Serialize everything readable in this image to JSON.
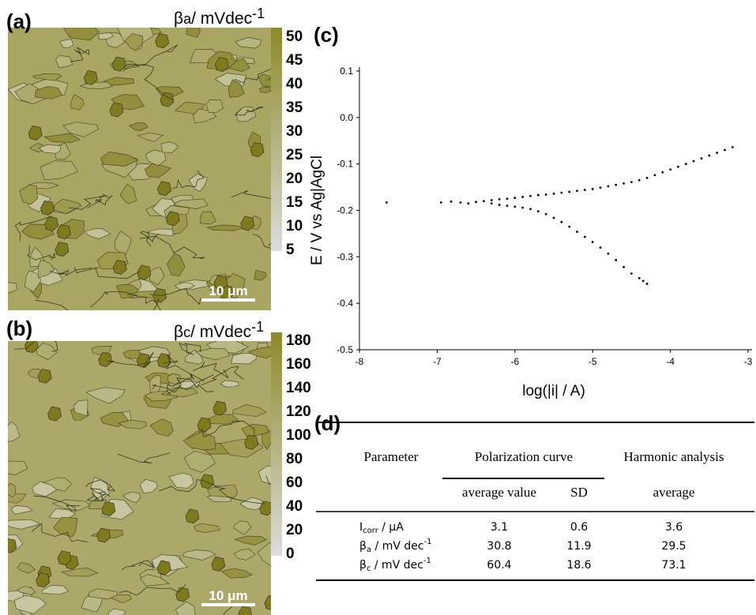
{
  "panels": {
    "a": {
      "label": "(a)",
      "title": {
        "main": "β",
        "sub": "a",
        "unit": "/ mVdec",
        "sup": "-1"
      },
      "colorbar": {
        "lim": [
          5,
          50
        ],
        "ticks": [
          50,
          45,
          40,
          35,
          30,
          25,
          20,
          15,
          10,
          5
        ]
      },
      "scale_bar": "10 μm"
    },
    "b": {
      "label": "(b)",
      "title": {
        "main": "β",
        "sub": "c",
        "unit": "/ mVdec",
        "sup": "-1"
      },
      "colorbar": {
        "lim": [
          0,
          180
        ],
        "ticks": [
          180,
          160,
          140,
          120,
          100,
          80,
          60,
          40,
          20,
          0
        ]
      },
      "scale_bar": "10 μm"
    },
    "c": {
      "label": "(c)"
    },
    "d": {
      "label": "(d)"
    }
  },
  "chart_data": {
    "type": "scatter",
    "color": "#000000",
    "x_label": "log(|i| / A)",
    "y_label": "E / V vs Ag|AgCl",
    "xlim": [
      -8,
      -3
    ],
    "xticks": [
      -8,
      -7,
      -6,
      -5,
      -4,
      -3
    ],
    "ylim": [
      -0.5,
      0.1
    ],
    "yticks": [
      0.1,
      {
        "value": 0,
        "label": "0.0"
      },
      -0.1,
      -0.2,
      -0.3,
      -0.4,
      -0.5
    ],
    "x": [
      -7.65,
      -6.95,
      -6.82,
      -6.7,
      -6.6,
      -6.5,
      -6.4,
      -6.3,
      -6.2,
      -6.1,
      -6.0,
      -5.9,
      -5.8,
      -5.7,
      -5.6,
      -5.5,
      -5.4,
      -5.3,
      -5.2,
      -5.1,
      -5.0,
      -4.9,
      -4.8,
      -4.7,
      -4.6,
      -4.5,
      -4.4,
      -4.3,
      -4.2,
      -4.1,
      -4.0,
      -3.9,
      -3.8,
      -3.7,
      -3.6,
      -3.5,
      -3.4,
      -3.3,
      -3.2,
      -6.3,
      -6.2,
      -6.1,
      -6.0,
      -5.9,
      -5.8,
      -5.7,
      -5.6,
      -5.5,
      -5.4,
      -5.3,
      -5.2,
      -5.1,
      -5.0,
      -4.9,
      -4.8,
      -4.7,
      -4.6,
      -4.5,
      -4.4,
      -4.35,
      -4.3
    ],
    "values": [
      -0.183,
      -0.183,
      -0.181,
      -0.183,
      -0.185,
      -0.182,
      -0.18,
      -0.178,
      -0.176,
      -0.175,
      -0.173,
      -0.171,
      -0.169,
      -0.167,
      -0.166,
      -0.164,
      -0.162,
      -0.16,
      -0.158,
      -0.156,
      -0.154,
      -0.151,
      -0.148,
      -0.145,
      -0.142,
      -0.139,
      -0.135,
      -0.13,
      -0.124,
      -0.118,
      -0.112,
      -0.106,
      -0.1,
      -0.094,
      -0.088,
      -0.082,
      -0.076,
      -0.07,
      -0.064,
      -0.185,
      -0.188,
      -0.19,
      -0.192,
      -0.194,
      -0.197,
      -0.202,
      -0.208,
      -0.216,
      -0.225,
      -0.235,
      -0.246,
      -0.257,
      -0.268,
      -0.28,
      -0.293,
      -0.307,
      -0.322,
      -0.336,
      -0.346,
      -0.352,
      -0.358
    ]
  },
  "table": {
    "headers": [
      "Parameter",
      "Polarization curve",
      "Harmonic analysis"
    ],
    "subheaders": [
      "average value",
      "SD",
      "average"
    ],
    "rows": [
      {
        "label": {
          "main": "I",
          "sub": "corr",
          "unit": " / μA"
        },
        "values": [
          3.1,
          0.6,
          3.6
        ]
      },
      {
        "label": {
          "main": "β",
          "sub": "a",
          "unit": " / mV dec",
          "sup": "-1"
        },
        "values": [
          30.8,
          11.9,
          29.5
        ]
      },
      {
        "label": {
          "main": "β",
          "sub": "c",
          "unit": " / mV dec",
          "sup": "-1"
        },
        "values": [
          60.4,
          18.6,
          73.1
        ]
      }
    ]
  }
}
